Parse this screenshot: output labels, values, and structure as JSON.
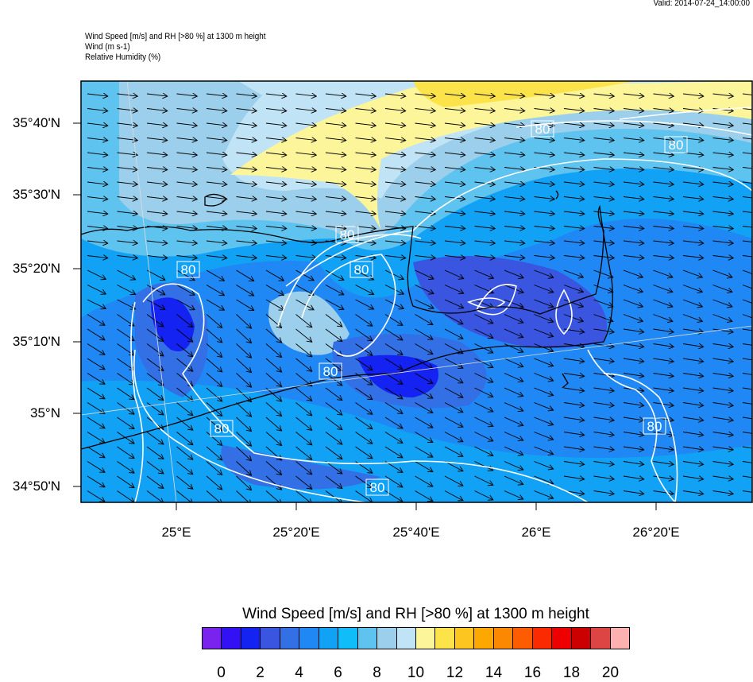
{
  "valid": "Valid: 2014-07-24_14:00:00",
  "titles": [
    "Wind Speed [m/s] and RH [>80 %] at 1300 m height",
    "Wind   (m s-1)",
    "Relative Humidity   (%)"
  ],
  "lat_ticks": [
    "35°40'N",
    "35°30'N",
    "35°20'N",
    "35°10'N",
    "35°N",
    "34°50'N"
  ],
  "lon_ticks": [
    "25°E",
    "25°20'E",
    "25°40'E",
    "26°E",
    "26°20'E"
  ],
  "contour_label": "80",
  "colorbar": {
    "title": "Wind Speed [m/s] and RH [>80 %] at 1300 m height",
    "colors": [
      "#7a22ee",
      "#3311f5",
      "#1422f2",
      "#3a55e0",
      "#3370e6",
      "#2088f5",
      "#12a2f5",
      "#10bdf8",
      "#5fc3f0",
      "#9ccfec",
      "#c0e3f5",
      "#fdf59a",
      "#fde34a",
      "#fcc520",
      "#fca800",
      "#fc8700",
      "#fd5d00",
      "#fc2a00",
      "#ee0000",
      "#cc0000",
      "#dd4444",
      "#fdb0b0"
    ],
    "labels": [
      "0",
      "2",
      "4",
      "6",
      "8",
      "10",
      "12",
      "14",
      "16",
      "18",
      "20"
    ]
  }
}
